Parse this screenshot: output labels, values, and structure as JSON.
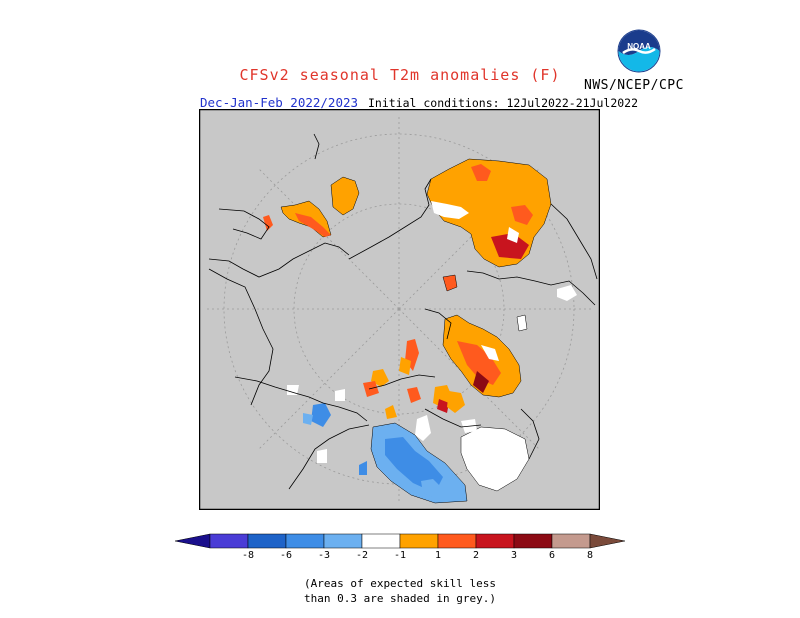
{
  "header": {
    "title": "CFSv2 seasonal T2m anomalies (F)",
    "agency": "NWS/NCEP/CPC",
    "period": "Dec-Jan-Feb 2022/2023",
    "initial_conditions": "Initial conditions: 12Jul2022-21Jul2022",
    "logo_text": "NOAA"
  },
  "colors": {
    "title": "#e0352b",
    "period": "#2233cc",
    "background_map": "#c8c8c8",
    "land_outline": "#000000",
    "no_skill_grey": "#c8c8c8",
    "white_neutral": "#ffffff"
  },
  "colorbar": {
    "labels": [
      "-8",
      "-6",
      "-3",
      "-2",
      "-1",
      "1",
      "2",
      "3",
      "6",
      "8"
    ],
    "colors": [
      "#1a0f8c",
      "#4a3cd6",
      "#1e63c8",
      "#3e8de6",
      "#6cb0f0",
      "#ffffff",
      "#ffa200",
      "#ff5a1e",
      "#c8141e",
      "#8c0a14",
      "#c49a8e",
      "#7a4a3a"
    ]
  },
  "note": {
    "line1": "(Areas of expected skill less",
    "line2": "than 0.3 are shaded in grey.)"
  }
}
